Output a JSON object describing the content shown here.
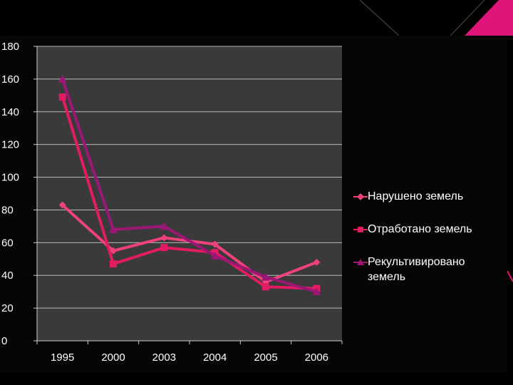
{
  "colors": {
    "background": "#000000",
    "plot_area": "#3a3a3a",
    "gridline": "#b9b9b9",
    "accent": "#e0157a"
  },
  "chart_data": {
    "type": "line",
    "categories": [
      "1995",
      "2000",
      "2003",
      "2004",
      "2005",
      "2006"
    ],
    "series": [
      {
        "name": "Нарушено земель",
        "values": [
          83,
          55,
          63,
          59,
          36,
          48
        ],
        "color": "#f0427a",
        "marker": "diamond"
      },
      {
        "name": "Отработано земель",
        "values": [
          149,
          47,
          57,
          54,
          33,
          32
        ],
        "color": "#e31b63",
        "marker": "square"
      },
      {
        "name": "Рекультивировано земель",
        "values": [
          160,
          68,
          70,
          52,
          39,
          30
        ],
        "color": "#9c1775",
        "marker": "triangle"
      }
    ],
    "yticks": [
      "0",
      "20",
      "40",
      "60",
      "80",
      "100",
      "120",
      "140",
      "160",
      "180"
    ],
    "ylim": [
      0,
      180
    ],
    "grid": true,
    "legend_position": "right",
    "title": "",
    "xlabel": "",
    "ylabel": ""
  }
}
